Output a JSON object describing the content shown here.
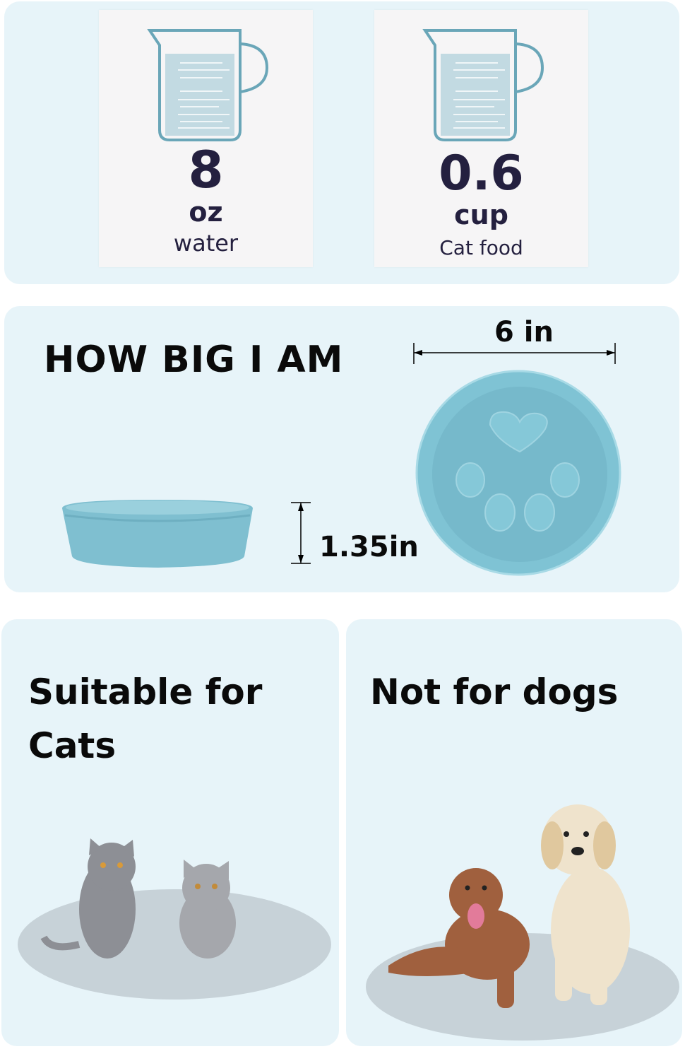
{
  "capacity": {
    "water": {
      "value": "8",
      "unit": "oz",
      "label": "water"
    },
    "food": {
      "value": "0.6",
      "unit": "cup",
      "label": "Cat food"
    }
  },
  "size": {
    "title": "HOW BIG I AM",
    "diameter": "6 in",
    "height": "1.35in"
  },
  "suitability": {
    "cats": {
      "title_line1": "Suitable for",
      "title_line2": "Cats"
    },
    "dogs": {
      "title": "Not for dogs"
    }
  },
  "colors": {
    "panel": "#e7f4f9",
    "bowl": "#7fbfd0",
    "text_dark": "#24203f",
    "jug": "#6aa6b8"
  }
}
